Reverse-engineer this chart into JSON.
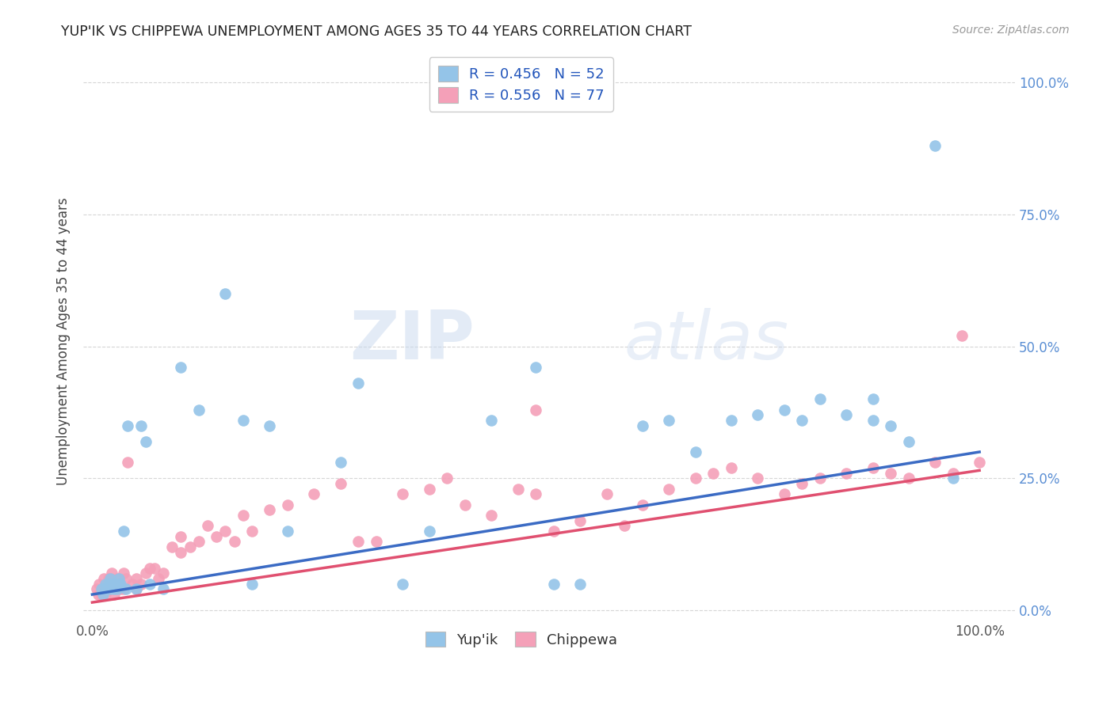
{
  "title": "YUP'IK VS CHIPPEWA UNEMPLOYMENT AMONG AGES 35 TO 44 YEARS CORRELATION CHART",
  "source": "Source: ZipAtlas.com",
  "ylabel": "Unemployment Among Ages 35 to 44 years",
  "yupik_color": "#94C4E8",
  "chippewa_color": "#F4A0B8",
  "yupik_line_color": "#3B6BC4",
  "chippewa_line_color": "#E05070",
  "yupik_legend_label": "R = 0.456   N = 52",
  "chippewa_legend_label": "R = 0.556   N = 77",
  "bottom_labels": [
    "Yup'ik",
    "Chippewa"
  ],
  "yupik_line_x0": 0.0,
  "yupik_line_y0": 0.03,
  "yupik_line_x1": 1.0,
  "yupik_line_y1": 0.3,
  "chippewa_line_x0": 0.0,
  "chippewa_line_y0": 0.015,
  "chippewa_line_x1": 1.0,
  "chippewa_line_y1": 0.265,
  "yupik_x": [
    0.01,
    0.012,
    0.015,
    0.015,
    0.018,
    0.02,
    0.02,
    0.022,
    0.025,
    0.025,
    0.028,
    0.03,
    0.03,
    0.032,
    0.035,
    0.038,
    0.04,
    0.05,
    0.055,
    0.06,
    0.065,
    0.08,
    0.1,
    0.12,
    0.15,
    0.17,
    0.18,
    0.2,
    0.22,
    0.28,
    0.3,
    0.35,
    0.38,
    0.45,
    0.5,
    0.52,
    0.55,
    0.62,
    0.65,
    0.68,
    0.72,
    0.75,
    0.78,
    0.8,
    0.82,
    0.85,
    0.88,
    0.88,
    0.9,
    0.92,
    0.95,
    0.97
  ],
  "yupik_y": [
    0.04,
    0.03,
    0.05,
    0.04,
    0.05,
    0.06,
    0.04,
    0.05,
    0.04,
    0.05,
    0.04,
    0.05,
    0.06,
    0.05,
    0.15,
    0.04,
    0.35,
    0.04,
    0.35,
    0.32,
    0.05,
    0.04,
    0.46,
    0.38,
    0.6,
    0.36,
    0.05,
    0.35,
    0.15,
    0.28,
    0.43,
    0.05,
    0.15,
    0.36,
    0.46,
    0.05,
    0.05,
    0.35,
    0.36,
    0.3,
    0.36,
    0.37,
    0.38,
    0.36,
    0.4,
    0.37,
    0.36,
    0.4,
    0.35,
    0.32,
    0.88,
    0.25
  ],
  "chippewa_x": [
    0.005,
    0.007,
    0.008,
    0.01,
    0.012,
    0.013,
    0.015,
    0.016,
    0.018,
    0.018,
    0.02,
    0.022,
    0.022,
    0.025,
    0.025,
    0.028,
    0.03,
    0.032,
    0.035,
    0.035,
    0.038,
    0.04,
    0.045,
    0.05,
    0.05,
    0.055,
    0.06,
    0.065,
    0.07,
    0.075,
    0.08,
    0.09,
    0.1,
    0.1,
    0.11,
    0.12,
    0.13,
    0.14,
    0.15,
    0.16,
    0.17,
    0.18,
    0.2,
    0.22,
    0.25,
    0.28,
    0.3,
    0.32,
    0.35,
    0.38,
    0.4,
    0.42,
    0.45,
    0.48,
    0.5,
    0.5,
    0.52,
    0.55,
    0.58,
    0.6,
    0.62,
    0.65,
    0.68,
    0.7,
    0.72,
    0.75,
    0.78,
    0.8,
    0.82,
    0.85,
    0.88,
    0.9,
    0.92,
    0.95,
    0.97,
    0.98,
    1.0
  ],
  "chippewa_y": [
    0.04,
    0.03,
    0.05,
    0.03,
    0.04,
    0.06,
    0.03,
    0.05,
    0.06,
    0.04,
    0.06,
    0.05,
    0.07,
    0.05,
    0.03,
    0.06,
    0.05,
    0.04,
    0.07,
    0.04,
    0.06,
    0.28,
    0.05,
    0.06,
    0.04,
    0.05,
    0.07,
    0.08,
    0.08,
    0.06,
    0.07,
    0.12,
    0.14,
    0.11,
    0.12,
    0.13,
    0.16,
    0.14,
    0.15,
    0.13,
    0.18,
    0.15,
    0.19,
    0.2,
    0.22,
    0.24,
    0.13,
    0.13,
    0.22,
    0.23,
    0.25,
    0.2,
    0.18,
    0.23,
    0.22,
    0.38,
    0.15,
    0.17,
    0.22,
    0.16,
    0.2,
    0.23,
    0.25,
    0.26,
    0.27,
    0.25,
    0.22,
    0.24,
    0.25,
    0.26,
    0.27,
    0.26,
    0.25,
    0.28,
    0.26,
    0.52,
    0.28
  ],
  "xlim_min": -0.01,
  "xlim_max": 1.04,
  "ylim_min": -0.02,
  "ylim_max": 1.04
}
